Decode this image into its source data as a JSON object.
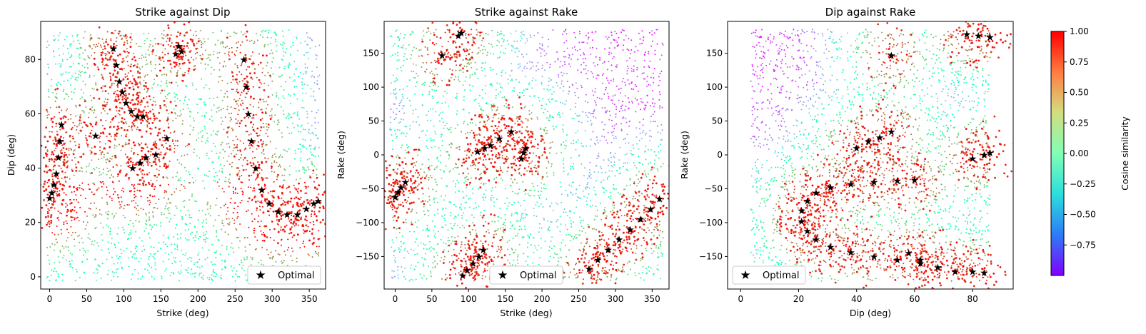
{
  "figure": {
    "colorbar": {
      "label": "Cosine similarity",
      "range": [
        -1.0,
        1.0
      ],
      "ticks": [
        1.0,
        0.75,
        0.5,
        0.25,
        0.0,
        -0.25,
        -0.5,
        -0.75
      ],
      "tick_labels": [
        "1.00",
        "0.75",
        "0.50",
        "0.25",
        "0.00",
        "−0.25",
        "−0.50",
        "−0.75"
      ],
      "colormap": "rainbow",
      "colors": [
        "#8000ff",
        "#2c7ef7",
        "#2adddd",
        "#80ffb4",
        "#d4dd80",
        "#ff7e41",
        "#ff0000"
      ]
    },
    "optimal_color": "#000000",
    "legend_label": "Optimal",
    "legend_marker": "star-icon"
  },
  "chart_data": [
    {
      "type": "scatter",
      "title": "Strike against Dip",
      "xlabel": "Strike (deg)",
      "ylabel": "Dip (deg)",
      "xlim": [
        -12,
        372
      ],
      "ylim": [
        -4.5,
        94
      ],
      "xticks": [
        0,
        50,
        100,
        150,
        200,
        250,
        300,
        350
      ],
      "yticks": [
        0,
        20,
        40,
        60,
        80
      ],
      "legend_position": "lower right",
      "series": [
        {
          "name": "Optimal",
          "marker": "star",
          "color": "#000000",
          "points": [
            [
              0,
              29
            ],
            [
              3,
              31
            ],
            [
              6,
              34
            ],
            [
              9,
              38
            ],
            [
              12,
              44
            ],
            [
              14,
              50
            ],
            [
              16,
              56
            ],
            [
              62,
              52
            ],
            [
              86,
              84
            ],
            [
              90,
              78
            ],
            [
              94,
              72
            ],
            [
              98,
              68
            ],
            [
              103,
              64
            ],
            [
              110,
              61
            ],
            [
              118,
              59
            ],
            [
              126,
              59
            ],
            [
              112,
              40
            ],
            [
              122,
              42
            ],
            [
              130,
              44
            ],
            [
              143,
              45
            ],
            [
              158,
              51
            ],
            [
              170,
              82
            ],
            [
              174,
              85
            ],
            [
              178,
              83
            ],
            [
              262,
              80
            ],
            [
              265,
              70
            ],
            [
              268,
              60
            ],
            [
              272,
              50
            ],
            [
              278,
              40
            ],
            [
              286,
              32
            ],
            [
              296,
              27
            ],
            [
              308,
              24
            ],
            [
              320,
              23
            ],
            [
              334,
              23
            ],
            [
              346,
              25
            ],
            [
              356,
              27
            ],
            [
              362,
              28
            ]
          ]
        }
      ]
    },
    {
      "type": "scatter",
      "title": "Strike against Rake",
      "xlabel": "Strike (deg)",
      "ylabel": "Rake (deg)",
      "xlim": [
        -15,
        373
      ],
      "ylim": [
        -198,
        197
      ],
      "xticks": [
        0,
        50,
        100,
        150,
        200,
        250,
        300,
        350
      ],
      "yticks": [
        -150,
        -100,
        -50,
        0,
        50,
        100,
        150
      ],
      "legend_position": "lower center",
      "series": [
        {
          "name": "Optimal",
          "marker": "star",
          "color": "#000000",
          "points": [
            [
              0,
              -62
            ],
            [
              4,
              -55
            ],
            [
              8,
              -48
            ],
            [
              14,
              -40
            ],
            [
              64,
              147
            ],
            [
              86,
              176
            ],
            [
              90,
              180
            ],
            [
              92,
              -178
            ],
            [
              98,
              -170
            ],
            [
              106,
              -160
            ],
            [
              114,
              -150
            ],
            [
              120,
              -140
            ],
            [
              112,
              5
            ],
            [
              122,
              10
            ],
            [
              130,
              14
            ],
            [
              142,
              24
            ],
            [
              158,
              34
            ],
            [
              172,
              -5
            ],
            [
              175,
              3
            ],
            [
              178,
              10
            ],
            [
              264,
              -168
            ],
            [
              276,
              -155
            ],
            [
              290,
              -140
            ],
            [
              305,
              -125
            ],
            [
              320,
              -110
            ],
            [
              334,
              -95
            ],
            [
              348,
              -80
            ],
            [
              360,
              -65
            ]
          ]
        }
      ]
    },
    {
      "type": "scatter",
      "title": "Dip against Rake",
      "xlabel": "Dip (deg)",
      "ylabel": "Rake (deg)",
      "xlim": [
        -4.5,
        94
      ],
      "ylim": [
        -198,
        197
      ],
      "xticks": [
        0,
        20,
        40,
        60,
        80
      ],
      "yticks": [
        -150,
        -100,
        -50,
        0,
        50,
        100,
        150
      ],
      "legend_position": "lower left",
      "series": [
        {
          "name": "Optimal",
          "marker": "star",
          "color": "#000000",
          "points": [
            [
              40,
              10
            ],
            [
              44,
              20
            ],
            [
              48,
              26
            ],
            [
              52,
              34
            ],
            [
              52,
              147
            ],
            [
              78,
              178
            ],
            [
              82,
              176
            ],
            [
              86,
              174
            ],
            [
              80,
              -5
            ],
            [
              84,
              0
            ],
            [
              86,
              3
            ],
            [
              60,
              -37
            ],
            [
              54,
              -38
            ],
            [
              46,
              -40
            ],
            [
              38,
              -43
            ],
            [
              31,
              -48
            ],
            [
              26,
              -56
            ],
            [
              23,
              -68
            ],
            [
              21,
              -82
            ],
            [
              21,
              -98
            ],
            [
              23,
              -112
            ],
            [
              26,
              -125
            ],
            [
              31,
              -136
            ],
            [
              38,
              -144
            ],
            [
              46,
              -150
            ],
            [
              54,
              -155
            ],
            [
              62,
              -160
            ],
            [
              68,
              -166
            ],
            [
              74,
              -172
            ],
            [
              58,
              -145
            ],
            [
              62,
              -155
            ],
            [
              80,
              -172
            ],
            [
              84,
              -174
            ]
          ]
        }
      ]
    }
  ]
}
